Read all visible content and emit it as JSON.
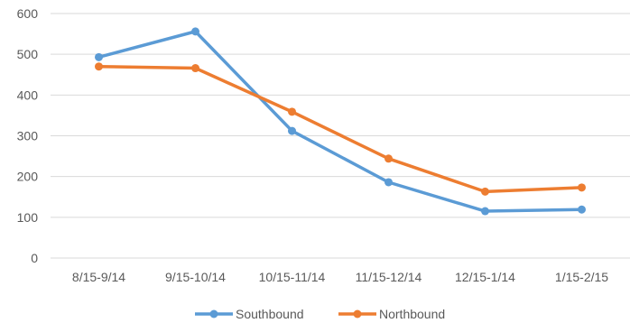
{
  "chart_data": {
    "type": "line",
    "title": "",
    "xlabel": "",
    "ylabel": "",
    "categories": [
      "8/15-9/14",
      "9/15-10/14",
      "10/15-11/14",
      "11/15-12/14",
      "12/15-1/14",
      "1/15-2/15"
    ],
    "ylim": [
      0,
      600
    ],
    "yticks": [
      0,
      100,
      200,
      300,
      400,
      500,
      600
    ],
    "grid": true,
    "legend_position": "bottom",
    "series": [
      {
        "name": "Southbound",
        "color": "#5b9bd5",
        "values": [
          493,
          556,
          312,
          186,
          115,
          119
        ]
      },
      {
        "name": "Northbound",
        "color": "#ed7d31",
        "values": [
          470,
          466,
          359,
          244,
          163,
          173
        ]
      }
    ]
  }
}
